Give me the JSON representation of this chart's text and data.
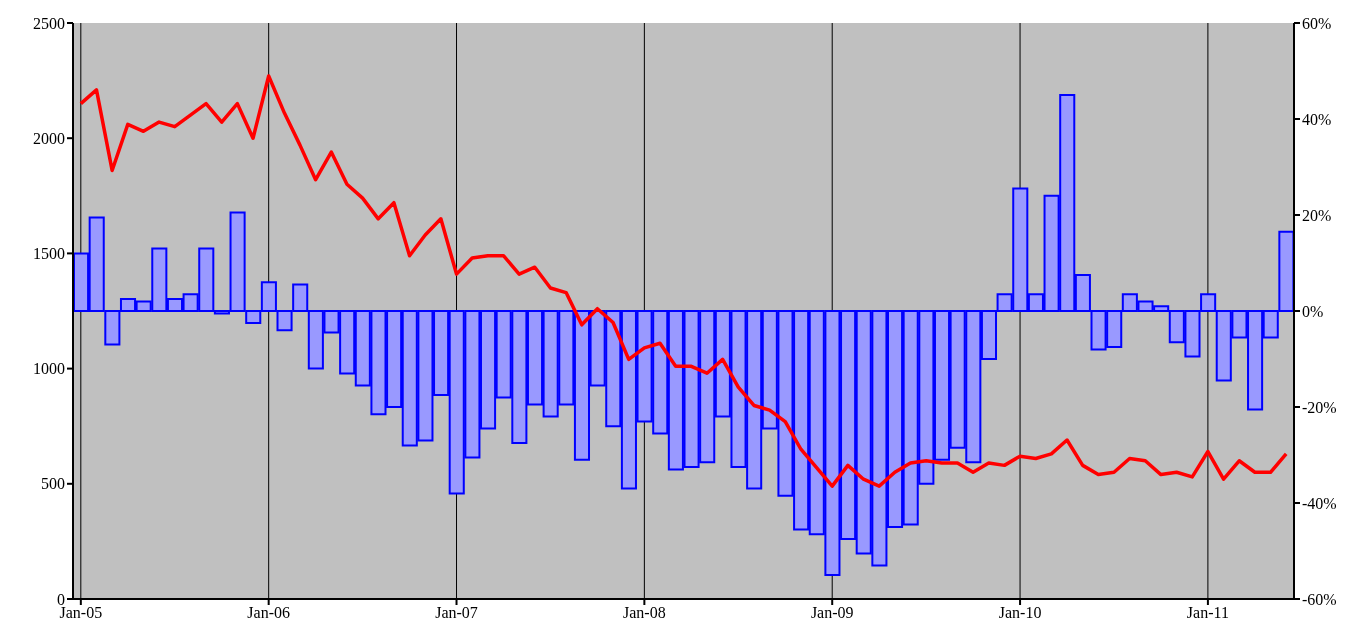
{
  "chart_data": {
    "type": "bar",
    "categories": [
      "Jan-05",
      null,
      null,
      null,
      null,
      null,
      null,
      null,
      null,
      null,
      null,
      null,
      "Jan-06",
      null,
      null,
      null,
      null,
      null,
      null,
      null,
      null,
      null,
      null,
      null,
      "Jan-07",
      null,
      null,
      null,
      null,
      null,
      null,
      null,
      null,
      null,
      null,
      null,
      "Jan-08",
      null,
      null,
      null,
      null,
      null,
      null,
      null,
      null,
      null,
      null,
      null,
      "Jan-09",
      null,
      null,
      null,
      null,
      null,
      null,
      null,
      null,
      null,
      null,
      null,
      "Jan-10",
      null,
      null,
      null,
      null,
      null,
      null,
      null,
      null,
      null,
      null,
      null,
      "Jan-11",
      null,
      null,
      null,
      null,
      null
    ],
    "series": [
      {
        "axis": "y2",
        "color": "#9999ff",
        "values": [
          12,
          19.5,
          -7,
          2.5,
          2,
          13,
          2.5,
          3.5,
          13,
          -0.5,
          20.5,
          -2.5,
          6,
          -4,
          5.5,
          -12,
          -4.5,
          -13,
          -15.5,
          -21.5,
          -20,
          -28,
          -27,
          -17.5,
          -38,
          -30.5,
          -24.5,
          -18,
          -27.5,
          -19.5,
          -22,
          -19.5,
          -31,
          -15.5,
          -24,
          -37,
          -23,
          -25.5,
          -33,
          -32.5,
          -31.5,
          -22,
          -32.5,
          -37,
          -24.5,
          -38.5,
          -45.5,
          -46.5,
          -55,
          -47.5,
          -50.5,
          -53,
          -45,
          -44.5,
          -36,
          -31,
          -28.5,
          -31.5,
          -10,
          3.5,
          25.5,
          3.5,
          24,
          45,
          7.5,
          -8,
          -7.5,
          3.5,
          2,
          1,
          -6.5,
          -9.5,
          3.5,
          -14.5,
          -5.5,
          -20.5,
          -5.5,
          16.5
        ]
      },
      {
        "type": "line",
        "axis": "y",
        "color": "#ff0000",
        "values": [
          2150,
          2210,
          1860,
          2060,
          2030,
          2070,
          2050,
          2100,
          2150,
          2070,
          2150,
          2000,
          2270,
          2110,
          1970,
          1820,
          1940,
          1800,
          1740,
          1650,
          1720,
          1490,
          1580,
          1650,
          1410,
          1480,
          1490,
          1490,
          1410,
          1440,
          1350,
          1330,
          1190,
          1260,
          1200,
          1040,
          1090,
          1110,
          1010,
          1010,
          980,
          1040,
          920,
          840,
          820,
          770,
          650,
          570,
          490,
          580,
          520,
          490,
          550,
          590,
          600,
          590,
          590,
          550,
          590,
          580,
          620,
          610,
          630,
          690,
          580,
          540,
          550,
          610,
          600,
          540,
          550,
          530,
          640,
          520,
          600,
          550,
          550,
          630
        ]
      }
    ],
    "ylim": [
      0,
      2500
    ],
    "yticks": [
      0,
      500,
      1000,
      1500,
      2000,
      2500
    ],
    "y2lim": [
      -60,
      60
    ],
    "y2ticks": [
      {
        "value": -60,
        "label": "-60%"
      },
      {
        "value": -40,
        "label": "-40%"
      },
      {
        "value": -20,
        "label": "-20%"
      },
      {
        "value": 0,
        "label": "0%"
      },
      {
        "value": 20,
        "label": "20%"
      },
      {
        "value": 40,
        "label": "40%"
      },
      {
        "value": 60,
        "label": "60%"
      }
    ],
    "grid": "x",
    "legend": false,
    "marker": "none",
    "line_style": "solid"
  }
}
